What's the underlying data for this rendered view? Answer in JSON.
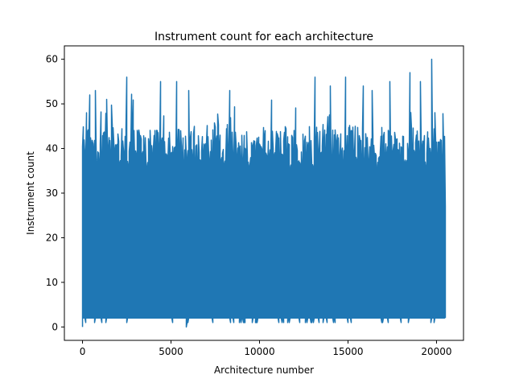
{
  "chart_data": {
    "type": "line",
    "title": "Instrument count for each architecture",
    "xlabel": "Architecture number",
    "ylabel": "Instrument count",
    "xlim": [
      -1025,
      21525
    ],
    "ylim": [
      -3,
      63
    ],
    "xticks": [
      0,
      5000,
      10000,
      15000,
      20000
    ],
    "yticks": [
      0,
      10,
      20,
      30,
      40,
      50,
      60
    ],
    "grid": false,
    "series": [
      {
        "color": "#1f77b4",
        "n_points": 20500,
        "x_range": [
          0,
          20500
        ],
        "base_low": 2,
        "typical_high_range": [
          35,
          45
        ],
        "notable_points": [
          {
            "x": 0,
            "y": 0
          },
          {
            "x": 5850,
            "y": 0
          },
          {
            "x": 220,
            "y": 48
          },
          {
            "x": 430,
            "y": 52
          },
          {
            "x": 750,
            "y": 53
          },
          {
            "x": 1350,
            "y": 51
          },
          {
            "x": 2500,
            "y": 56
          },
          {
            "x": 4400,
            "y": 55
          },
          {
            "x": 5300,
            "y": 55
          },
          {
            "x": 6000,
            "y": 53
          },
          {
            "x": 8300,
            "y": 53
          },
          {
            "x": 13150,
            "y": 56
          },
          {
            "x": 14000,
            "y": 54
          },
          {
            "x": 14850,
            "y": 56
          },
          {
            "x": 15850,
            "y": 54
          },
          {
            "x": 16350,
            "y": 53
          },
          {
            "x": 17350,
            "y": 55
          },
          {
            "x": 18500,
            "y": 57
          },
          {
            "x": 19100,
            "y": 55
          },
          {
            "x": 19750,
            "y": 60
          },
          {
            "x": 20500,
            "y": 27
          }
        ]
      }
    ]
  }
}
